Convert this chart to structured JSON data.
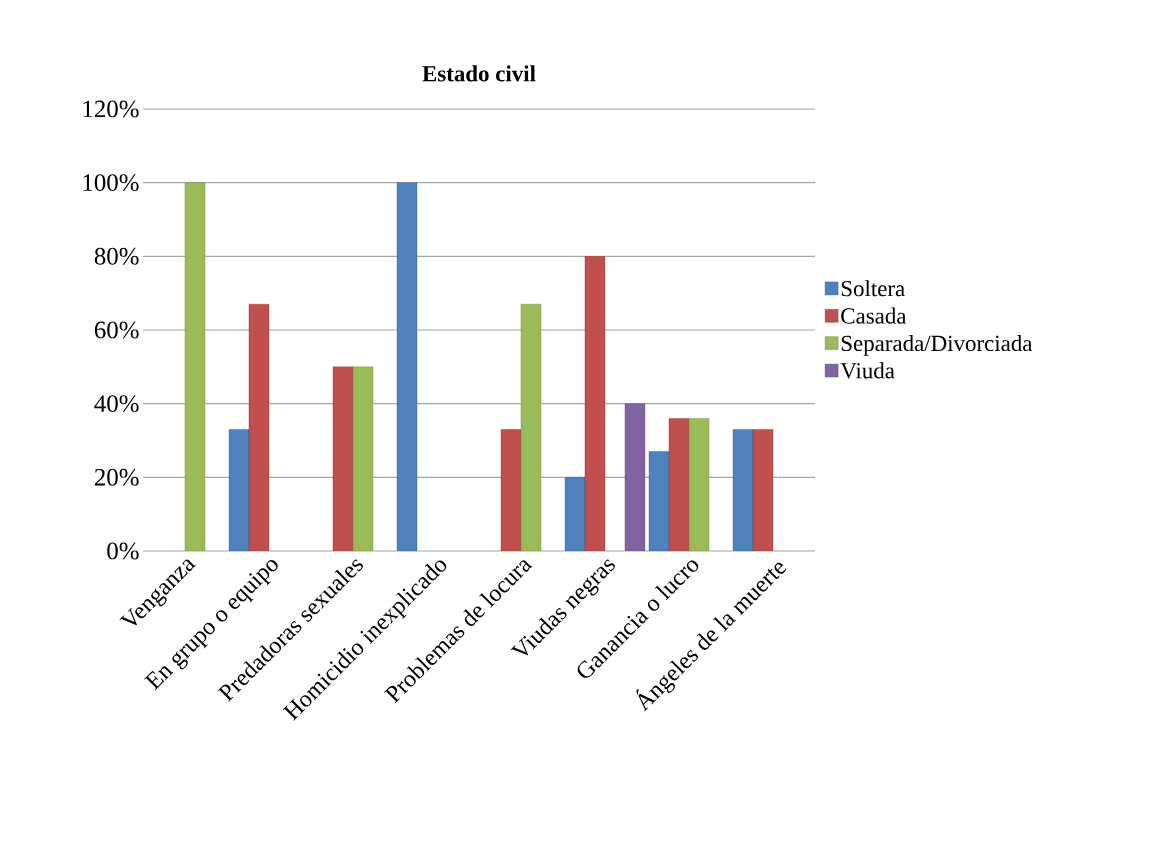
{
  "chart_data": {
    "type": "bar",
    "title": "Estado civil",
    "categories": [
      "Venganza",
      "En grupo o equipo",
      "Predadoras sexuales",
      "Homicidio inexplicado",
      "Problemas de locura",
      "Viudas negras",
      "Ganancia o lucro",
      "Ángeles de la muerte"
    ],
    "series": [
      {
        "name": "Soltera",
        "color": "#4f81bd",
        "values": [
          null,
          33,
          null,
          100,
          null,
          20,
          27,
          33
        ]
      },
      {
        "name": "Casada",
        "color": "#c0504d",
        "values": [
          null,
          67,
          50,
          null,
          33,
          80,
          36,
          33
        ]
      },
      {
        "name": "Separada/Divorciada",
        "color": "#9bbb59",
        "values": [
          100,
          null,
          50,
          null,
          67,
          null,
          36,
          null
        ]
      },
      {
        "name": "Viuda",
        "color": "#8064a2",
        "values": [
          null,
          null,
          null,
          null,
          null,
          40,
          null,
          null
        ]
      }
    ],
    "ylim": [
      0,
      120
    ],
    "yticks": [
      {
        "value": 0,
        "label": "0%"
      },
      {
        "value": 20,
        "label": "20%"
      },
      {
        "value": 40,
        "label": "40%"
      },
      {
        "value": 60,
        "label": "60%"
      },
      {
        "value": 80,
        "label": "80%"
      },
      {
        "value": 100,
        "label": "100%"
      },
      {
        "value": 120,
        "label": "120%"
      }
    ],
    "grid": "y",
    "legend": "right"
  }
}
